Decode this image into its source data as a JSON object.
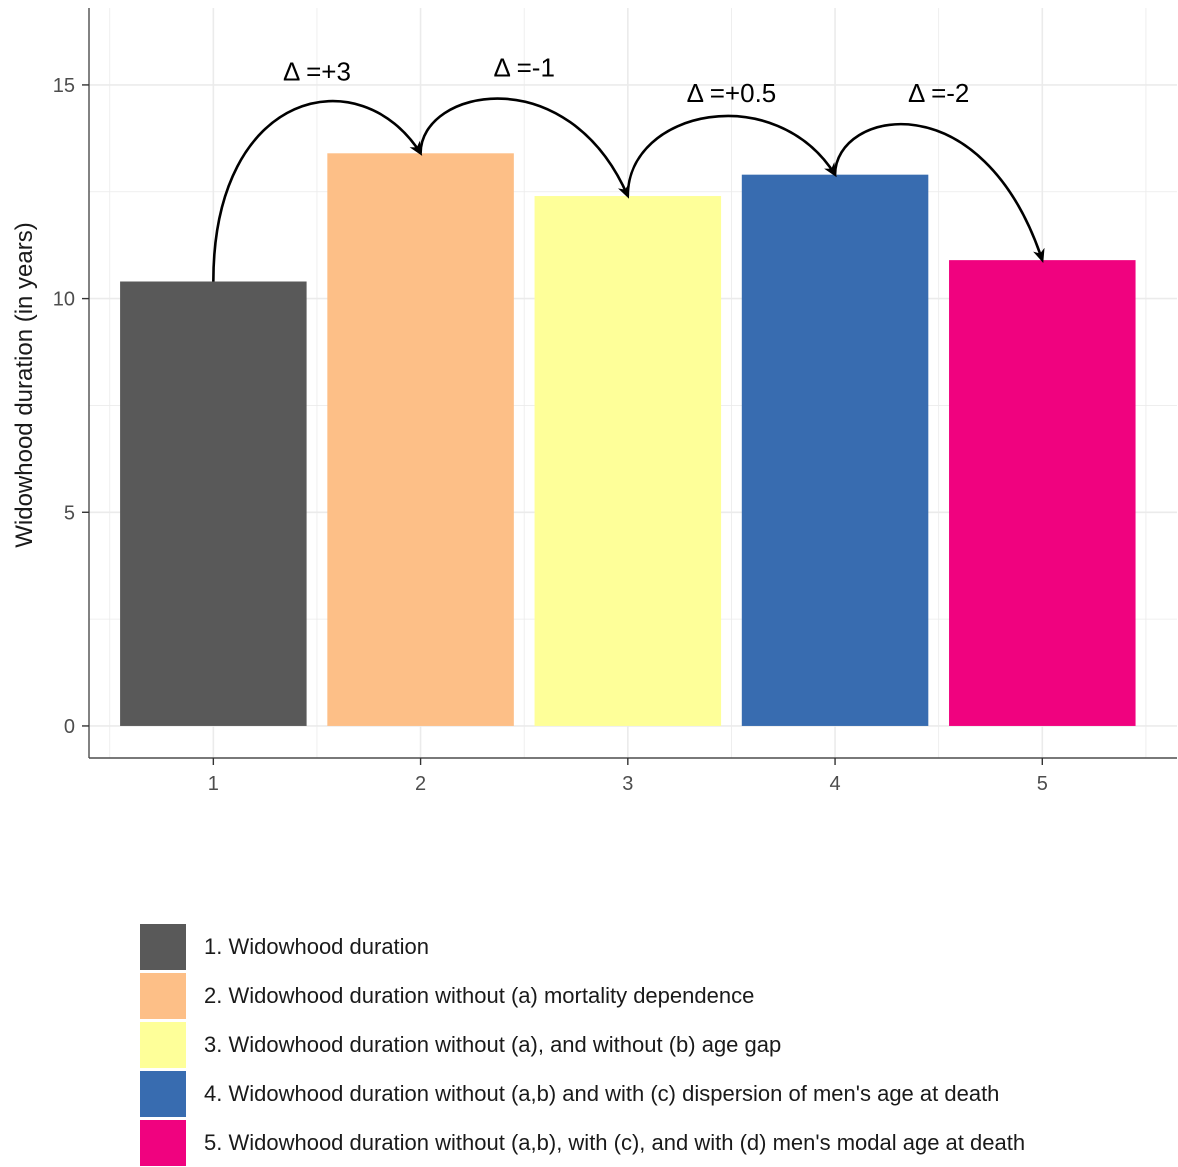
{
  "chart_data": {
    "type": "bar",
    "categories": [
      "1",
      "2",
      "3",
      "4",
      "5"
    ],
    "values": [
      10.4,
      13.4,
      12.4,
      12.9,
      10.9
    ],
    "colors": [
      "#595959",
      "#fdbf87",
      "#feff99",
      "#386cb0",
      "#f0027f"
    ],
    "ylabel": "Widowhood duration (in years)",
    "xlabel": "",
    "ylim": [
      -0.75,
      16.8
    ],
    "xlim": [
      0.4,
      5.65
    ],
    "yticks": [
      0,
      5,
      10,
      15
    ],
    "grid": true,
    "legend_position": "bottom",
    "legend": [
      "1. Widowhood duration",
      "2. Widowhood duration without (a) mortality dependence",
      "3. Widowhood duration without (a), and without (b) age gap",
      "4. Widowhood duration without (a,b) and with (c) dispersion of men's age at death",
      "5. Widowhood duration without (a,b), with (c), and with (d) men's modal age at death"
    ],
    "annotations": [
      {
        "label": "Δ =+3",
        "from": 1,
        "to": 2,
        "x": 2.5,
        "y": 15.1
      },
      {
        "label": "Δ =-1",
        "from": 2,
        "to": 3,
        "x": 2.5,
        "y": 15.2
      },
      {
        "label": "Δ =+0.5",
        "from": 3,
        "to": 4,
        "x": 3.5,
        "y": 14.6
      },
      {
        "label": "Δ =-2",
        "from": 4,
        "to": 5,
        "x": 4.5,
        "y": 14.6
      }
    ]
  }
}
